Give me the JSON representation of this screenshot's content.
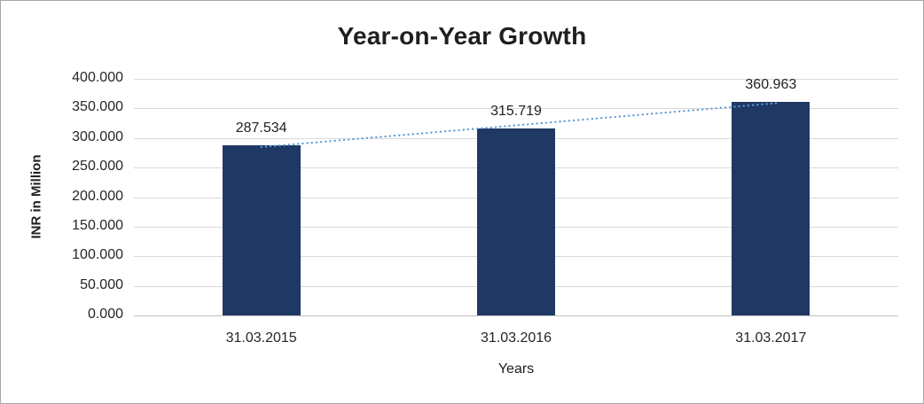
{
  "chart_data": {
    "type": "bar",
    "title": "Year-on-Year Growth",
    "xlabel": "Years",
    "ylabel": "INR in Million",
    "categories": [
      "31.03.2015",
      "31.03.2016",
      "31.03.2017"
    ],
    "values": [
      287.534,
      315.719,
      360.963
    ],
    "value_labels": [
      "287.534",
      "315.719",
      "360.963"
    ],
    "ylim": [
      0,
      400
    ],
    "ytick_step": 50,
    "ytick_labels": [
      "0.000",
      "50.000",
      "100.000",
      "150.000",
      "200.000",
      "250.000",
      "300.000",
      "350.000",
      "400.000"
    ],
    "grid": true,
    "legend": "none",
    "trendline": {
      "type": "linear",
      "style": "dotted",
      "color": "#5b9bd5"
    },
    "colors": {
      "bar": "#1f3864",
      "gridline": "#d9d9d9",
      "axis_line": "#bfbfbf",
      "text": "#1f1f1f",
      "frame_border": "#a6a6a6",
      "background": "#ffffff"
    }
  }
}
